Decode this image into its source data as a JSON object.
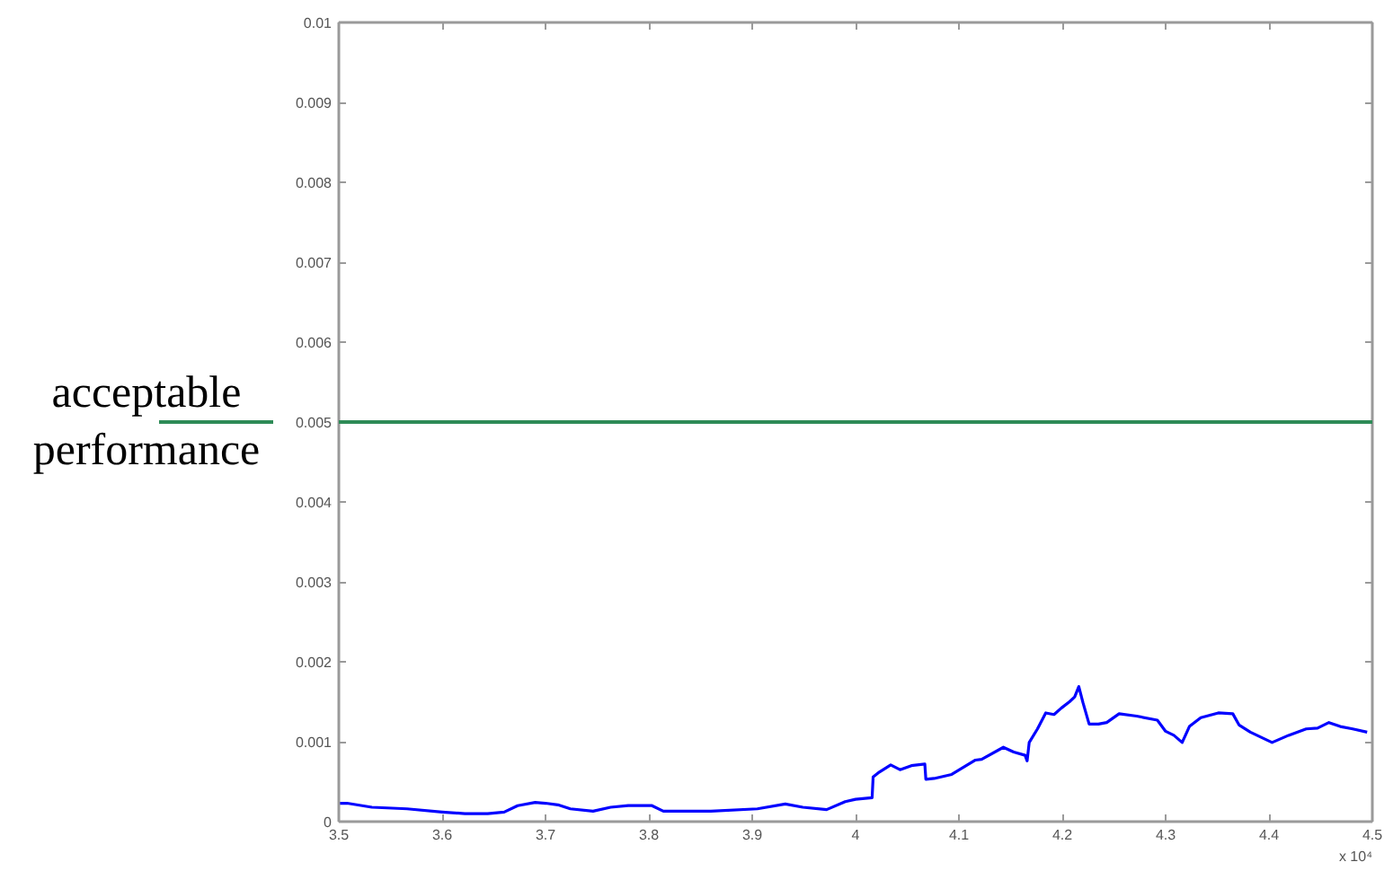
{
  "chart_data": {
    "type": "line",
    "line_style": "solid",
    "xlim": [
      3.5,
      4.5
    ],
    "ylim": [
      0,
      0.01
    ],
    "xticks": [
      3.5,
      3.6,
      3.7,
      3.8,
      3.9,
      4,
      4.1,
      4.2,
      4.3,
      4.4,
      4.5
    ],
    "yticks": [
      0,
      0.001,
      0.002,
      0.003,
      0.004,
      0.005,
      0.006,
      0.007,
      0.008,
      0.009,
      0.01
    ],
    "series": [
      {
        "color": "#0000ff",
        "x": [
          3.5,
          3.508,
          3.532,
          3.566,
          3.6,
          3.622,
          3.644,
          3.66,
          3.673,
          3.69,
          3.7,
          3.712,
          3.724,
          3.746,
          3.763,
          3.78,
          3.803,
          3.814,
          3.86,
          3.905,
          3.932,
          3.949,
          3.972,
          3.99,
          4.0,
          4.016,
          4.017,
          4.023,
          4.034,
          4.043,
          4.054,
          4.067,
          4.068,
          4.076,
          4.093,
          4.116,
          4.122,
          4.143,
          4.153,
          4.164,
          4.166,
          4.168,
          4.176,
          4.184,
          4.192,
          4.199,
          4.207,
          4.212,
          4.216,
          4.22,
          4.226,
          4.235,
          4.243,
          4.255,
          4.272,
          4.292,
          4.3,
          4.308,
          4.316,
          4.323,
          4.334,
          4.351,
          4.365,
          4.371,
          4.382,
          4.403,
          4.419,
          4.436,
          4.447,
          4.458,
          4.469,
          4.481,
          4.495
        ],
        "values": [
          0.00023,
          0.00023,
          0.00018,
          0.00016,
          0.00012,
          0.0001,
          0.0001,
          0.00012,
          0.0002,
          0.00024,
          0.00023,
          0.00021,
          0.00016,
          0.00013,
          0.00018,
          0.0002,
          0.0002,
          0.00013,
          0.00013,
          0.00016,
          0.00022,
          0.00018,
          0.00015,
          0.00025,
          0.00028,
          0.0003,
          0.00056,
          0.00062,
          0.00071,
          0.00065,
          0.0007,
          0.00072,
          0.00053,
          0.00054,
          0.00059,
          0.00077,
          0.00078,
          0.00093,
          0.00087,
          0.00083,
          0.00076,
          0.00099,
          0.00116,
          0.00136,
          0.00134,
          0.00142,
          0.0015,
          0.00156,
          0.00169,
          0.00149,
          0.00122,
          0.00122,
          0.00124,
          0.00135,
          0.00132,
          0.00127,
          0.00113,
          0.00108,
          0.00099,
          0.00119,
          0.0013,
          0.00136,
          0.00135,
          0.00121,
          0.00112,
          0.00099,
          0.00108,
          0.00116,
          0.00117,
          0.00124,
          0.00119,
          0.00116,
          0.00112
        ]
      }
    ],
    "ref_lines": [
      {
        "axis": "y",
        "value": 0.005,
        "label": "acceptable performance",
        "color": "#2e8b57"
      }
    ],
    "annotations": [
      "x 10⁴"
    ]
  }
}
